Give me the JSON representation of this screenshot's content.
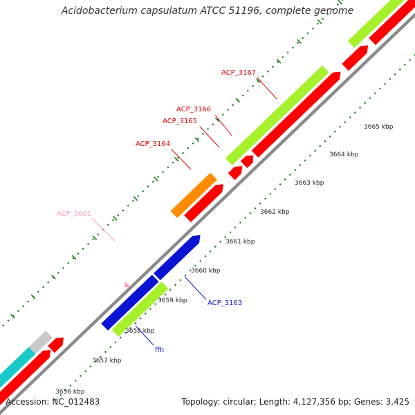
{
  "title": "Acidobacterium capsulatum ATCC 51196, complete genome",
  "accession": "Accession: NC_012483",
  "summary": "Topology: circular; Length: 4,127,356 bp; Genes: 3,425",
  "colors": {
    "backbone": "#8a8a8a",
    "red": "#ff0000",
    "green": "#a6f02c",
    "blue": "#0a14d2",
    "orange": "#ff8c00",
    "cyan": "#19c8c8",
    "gray": "#c8c8c8",
    "pink": "#ff9ec8",
    "tick": "#1a7a1a"
  },
  "scale": {
    "unit": "kbp",
    "ticks": [
      "3656 kbp",
      "3657 kbp",
      "3658 kbp",
      "3659 kbp",
      "3660 kbp",
      "3661 kbp",
      "3662 kbp",
      "3663 kbp",
      "3664 kbp",
      "3665 kbp"
    ]
  },
  "gene_labels": [
    {
      "name": "ACP_3167",
      "color": "red"
    },
    {
      "name": "ACP_3166",
      "color": "red"
    },
    {
      "name": "ACP_3165",
      "color": "red"
    },
    {
      "name": "ACP_3164",
      "color": "red"
    },
    {
      "name": "ACP_3601",
      "color": "pink"
    },
    {
      "name": "ACP_3163",
      "color": "blue"
    },
    {
      "name": "ffh",
      "color": "blue"
    }
  ]
}
